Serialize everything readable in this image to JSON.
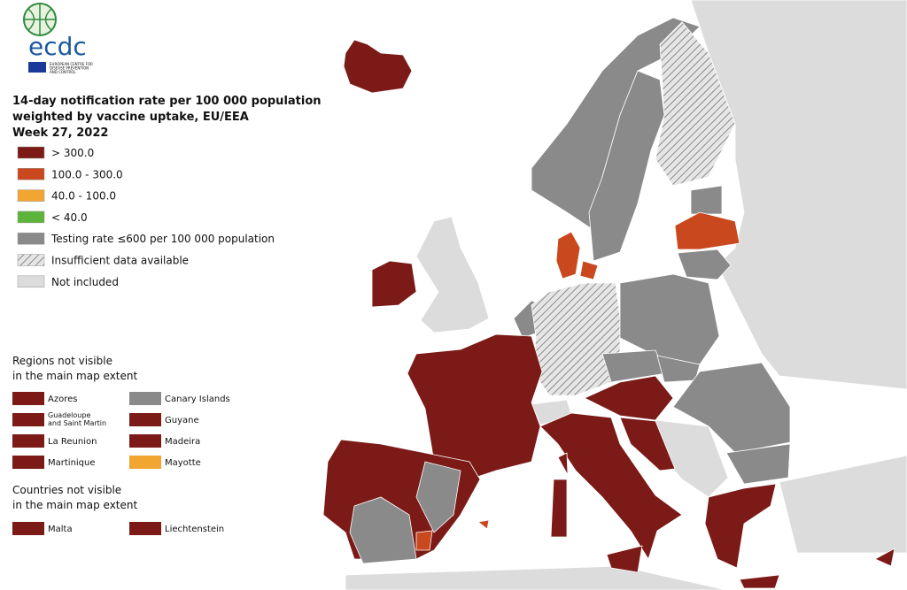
{
  "logo": {
    "name": "ecdc",
    "subtitle": [
      "EUROPEAN CENTRE FOR",
      "DISEASE PREVENTION",
      "AND CONTROL"
    ]
  },
  "title": [
    "14-day notification rate per 100 000 population",
    "weighted by vaccine uptake, EU/EEA",
    "Week 27, 2022"
  ],
  "legend": [
    {
      "label": "> 300.0",
      "color": "#7b1a16"
    },
    {
      "label": "100.0 - 300.0",
      "color": "#c9481e"
    },
    {
      "label": "40.0 - 100.0",
      "color": "#f2a531"
    },
    {
      "label": "< 40.0",
      "color": "#5db43b"
    },
    {
      "label": "Testing rate ≤600 per 100 000 population",
      "color": "#8a8a8a"
    },
    {
      "label": "Insufficient data available",
      "color": "hatch"
    },
    {
      "label": "Not included",
      "color": "#dcdcdc"
    }
  ],
  "regions": {
    "title": [
      "Regions not visible",
      "in the main map extent"
    ],
    "items": [
      {
        "label": [
          "Azores"
        ],
        "color": "#7b1a16"
      },
      {
        "label": [
          "Guadeloupe",
          "and Saint Martin"
        ],
        "color": "#7b1a16"
      },
      {
        "label": [
          "La Reunion"
        ],
        "color": "#7b1a16"
      },
      {
        "label": [
          "Martinique"
        ],
        "color": "#7b1a16"
      },
      {
        "label": [
          "Canary Islands"
        ],
        "color": "#8a8a8a"
      },
      {
        "label": [
          "Guyane"
        ],
        "color": "#7b1a16"
      },
      {
        "label": [
          "Madeira"
        ],
        "color": "#7b1a16"
      },
      {
        "label": [
          "Mayotte"
        ],
        "color": "#f2a531"
      }
    ]
  },
  "countries": {
    "title": [
      "Countries not visible",
      "in the main map extent"
    ],
    "items": [
      {
        "label": [
          "Malta"
        ],
        "color": "#7b1a16"
      },
      {
        "label": [
          "Liechtenstein"
        ],
        "color": "#7b1a16"
      }
    ]
  }
}
